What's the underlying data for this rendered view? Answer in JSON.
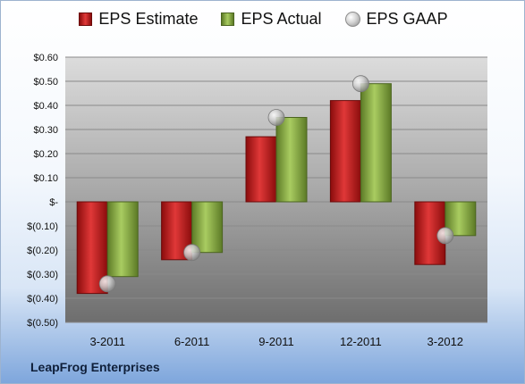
{
  "company": "LeapFrog Enterprises",
  "legend": [
    {
      "label": "EPS Estimate",
      "key": "estimate"
    },
    {
      "label": "EPS Actual",
      "key": "actual"
    },
    {
      "label": "EPS GAAP",
      "key": "gaap"
    }
  ],
  "colors": {
    "estimate": "#c81e1e",
    "actual": "#8db245",
    "gaap": "#bdbdbd"
  },
  "chart_data": {
    "type": "bar",
    "categories": [
      "3-2011",
      "6-2011",
      "9-2011",
      "12-2011",
      "3-2012"
    ],
    "series": [
      {
        "name": "EPS Estimate",
        "values": [
          -0.38,
          -0.24,
          0.27,
          0.42,
          -0.26
        ]
      },
      {
        "name": "EPS Actual",
        "values": [
          -0.31,
          -0.21,
          0.35,
          0.49,
          -0.14
        ]
      },
      {
        "name": "EPS GAAP",
        "values": [
          -0.34,
          -0.21,
          0.35,
          0.49,
          -0.14
        ],
        "marker": "sphere"
      }
    ],
    "ylim": [
      -0.5,
      0.6
    ],
    "yticks": [
      0.6,
      0.5,
      0.4,
      0.3,
      0.2,
      0.1,
      0,
      -0.1,
      -0.2,
      -0.3,
      -0.4,
      -0.5
    ],
    "ytick_labels": [
      "$0.60",
      "$0.50",
      "$0.40",
      "$0.30",
      "$0.20",
      "$0.10",
      "$-",
      "$(0.10)",
      "$(0.20)",
      "$(0.30)",
      "$(0.40)",
      "$(0.50)"
    ],
    "grid": true,
    "legend_position": "top"
  }
}
